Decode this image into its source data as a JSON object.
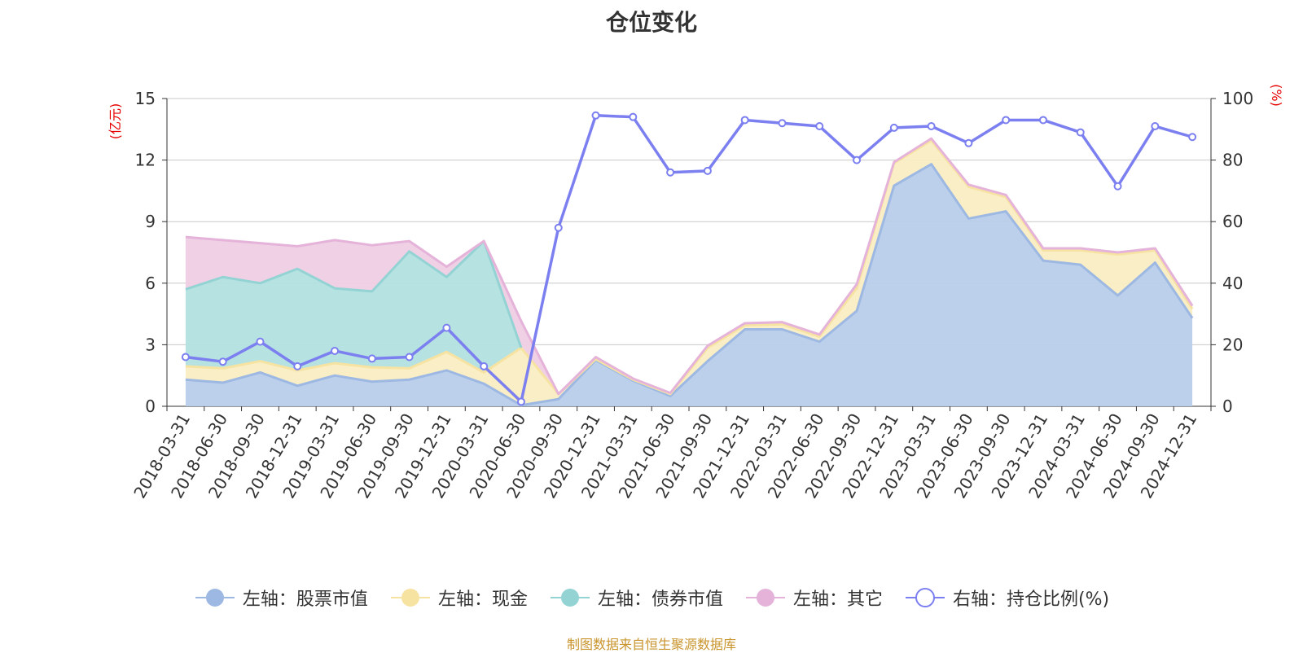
{
  "chart_data": {
    "type": "area",
    "title": "仓位变化",
    "source_note": "制图数据来自恒生聚源数据库",
    "y_left": {
      "label": "(亿元)",
      "min": 0,
      "max": 15,
      "ticks": [
        0,
        3,
        6,
        9,
        12,
        15
      ]
    },
    "y_right": {
      "label": "(%)",
      "min": 0,
      "max": 100,
      "ticks": [
        0,
        20,
        40,
        60,
        80,
        100
      ]
    },
    "categories": [
      "2018-03-31",
      "2018-06-30",
      "2018-09-30",
      "2018-12-31",
      "2019-03-31",
      "2019-06-30",
      "2019-09-30",
      "2019-12-31",
      "2020-03-31",
      "2020-06-30",
      "2020-09-30",
      "2020-12-31",
      "2021-03-31",
      "2021-06-30",
      "2021-09-30",
      "2021-12-31",
      "2022-03-31",
      "2022-06-30",
      "2022-09-30",
      "2022-12-31",
      "2023-03-31",
      "2023-06-30",
      "2023-09-30",
      "2023-12-31",
      "2024-03-31",
      "2024-06-30",
      "2024-09-30",
      "2024-12-31"
    ],
    "series": [
      {
        "name": "左轴：股票市值",
        "axis": "left",
        "stack": true,
        "color": "#9db8e2",
        "fill": "#b8cdea",
        "values": [
          1.3,
          1.15,
          1.65,
          1.0,
          1.5,
          1.2,
          1.3,
          1.75,
          1.1,
          0.05,
          0.35,
          2.25,
          1.25,
          0.5,
          2.2,
          3.75,
          3.75,
          3.15,
          4.65,
          10.75,
          11.8,
          9.15,
          9.5,
          7.1,
          6.9,
          5.4,
          7.0,
          4.3
        ]
      },
      {
        "name": "左轴：现金",
        "axis": "left",
        "stack": true,
        "color": "#f7e3a1",
        "fill": "#f9edc2",
        "values": [
          0.65,
          0.7,
          0.55,
          0.75,
          0.6,
          0.7,
          0.55,
          0.9,
          0.55,
          2.8,
          0.25,
          0.05,
          0.05,
          0.1,
          0.65,
          0.2,
          0.25,
          0.25,
          1.1,
          1.1,
          1.15,
          1.55,
          0.7,
          0.5,
          0.7,
          2.0,
          0.6,
          0.45
        ]
      },
      {
        "name": "左轴：债券市值",
        "axis": "left",
        "stack": true,
        "color": "#94d3d4",
        "fill": "#b3e0e0",
        "values": [
          3.75,
          4.45,
          3.8,
          4.95,
          3.65,
          3.7,
          5.7,
          3.65,
          6.4,
          0,
          0,
          0,
          0,
          0,
          0,
          0,
          0,
          0,
          0,
          0,
          0,
          0,
          0,
          0,
          0,
          0,
          0,
          0
        ]
      },
      {
        "name": "左轴：其它",
        "axis": "left",
        "stack": true,
        "color": "#e5b3d9",
        "fill": "#efcde4",
        "values": [
          2.55,
          1.8,
          1.95,
          1.1,
          2.35,
          2.25,
          0.5,
          0.5,
          0,
          1.3,
          0,
          0.1,
          0.05,
          0.05,
          0.1,
          0.1,
          0.1,
          0.1,
          0.2,
          0.05,
          0.1,
          0.1,
          0.1,
          0.1,
          0.1,
          0.1,
          0.1,
          0.15
        ]
      },
      {
        "name": "右轴：持仓比例(%)",
        "axis": "right",
        "stack": false,
        "color": "#7b7ff0",
        "values": [
          16,
          14.5,
          21,
          13,
          18,
          15.5,
          16,
          25.5,
          13,
          1.5,
          58,
          94.5,
          94,
          76,
          76.5,
          93,
          92,
          91,
          80,
          90.5,
          91,
          85.5,
          93,
          93,
          89,
          71.5,
          91,
          87.5
        ]
      }
    ]
  }
}
